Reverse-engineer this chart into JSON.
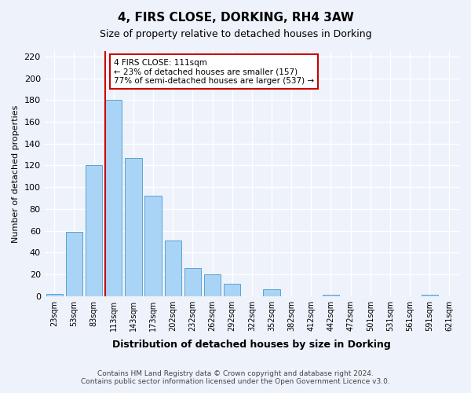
{
  "title": "4, FIRS CLOSE, DORKING, RH4 3AW",
  "subtitle": "Size of property relative to detached houses in Dorking",
  "xlabel": "Distribution of detached houses by size in Dorking",
  "ylabel": "Number of detached properties",
  "bar_labels": [
    "23sqm",
    "53sqm",
    "83sqm",
    "113sqm",
    "143sqm",
    "173sqm",
    "202sqm",
    "232sqm",
    "262sqm",
    "292sqm",
    "322sqm",
    "352sqm",
    "382sqm",
    "412sqm",
    "442sqm",
    "472sqm",
    "501sqm",
    "531sqm",
    "561sqm",
    "591sqm",
    "621sqm"
  ],
  "bar_values": [
    2,
    59,
    120,
    180,
    127,
    92,
    51,
    26,
    20,
    11,
    0,
    6,
    0,
    0,
    1,
    0,
    0,
    0,
    0,
    1,
    0
  ],
  "bar_color": "#aad4f5",
  "bar_edge_color": "#5ba3d0",
  "ylim": [
    0,
    225
  ],
  "yticks": [
    0,
    20,
    40,
    60,
    80,
    100,
    120,
    140,
    160,
    180,
    200,
    220
  ],
  "vline_color": "#cc0000",
  "annotation_text": "4 FIRS CLOSE: 111sqm\n← 23% of detached houses are smaller (157)\n77% of semi-detached houses are larger (537) →",
  "annotation_box_color": "#ffffff",
  "annotation_box_edge": "#cc0000",
  "footer_line1": "Contains HM Land Registry data © Crown copyright and database right 2024.",
  "footer_line2": "Contains public sector information licensed under the Open Government Licence v3.0.",
  "background_color": "#eef2fb",
  "grid_color": "#ffffff"
}
